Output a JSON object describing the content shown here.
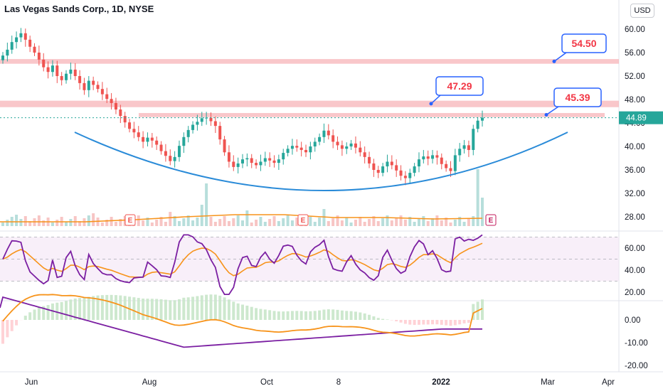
{
  "header": {
    "title": "Las Vegas Sands Corp., 1D, NYSE",
    "currency_button": "USD"
  },
  "colors": {
    "up": "#26a69a",
    "down": "#ef5350",
    "resistance_zone": "#f7b4b8",
    "arc": "#2a8bd8",
    "ma": "#f7931a",
    "rsi": "#7b1fa2",
    "callout_border": "#2962ff",
    "callout_text": "#f23645"
  },
  "price_axis": {
    "ticks": [
      "60.00",
      "56.00",
      "52.00",
      "48.00",
      "44.00",
      "40.00",
      "36.00",
      "32.00",
      "28.00"
    ],
    "last_price": "44.89"
  },
  "rsi_axis": {
    "ticks": [
      "60.00",
      "40.00",
      "20.00"
    ]
  },
  "macd_axis": {
    "ticks": [
      "0.00",
      "-10.00",
      "-20.00"
    ]
  },
  "time_axis": {
    "labels": [
      {
        "text": "Jun",
        "bold": false
      },
      {
        "text": "Aug",
        "bold": false
      },
      {
        "text": "Oct",
        "bold": false
      },
      {
        "text": "8",
        "bold": false
      },
      {
        "text": "2022",
        "bold": true
      },
      {
        "text": "Mar",
        "bold": false
      },
      {
        "text": "Apr",
        "bold": false
      }
    ]
  },
  "callouts": [
    {
      "label": "54.50",
      "price": 54.5
    },
    {
      "label": "47.29",
      "price": 47.29
    },
    {
      "label": "45.39",
      "price": 45.39
    }
  ],
  "earnings_markers": [
    "E",
    "E",
    "E"
  ],
  "chart_data": {
    "type": "candlestick",
    "symbol": "Las Vegas Sands Corp., 1D, NYSE",
    "series": [
      {
        "name": "price_close",
        "note": "approximate daily closes read from chart",
        "values": [
          55.5,
          56.5,
          57.8,
          58.6,
          59.3,
          58.2,
          57.0,
          56.0,
          54.8,
          53.5,
          52.7,
          53.8,
          52.0,
          51.3,
          52.4,
          53.1,
          52.0,
          50.8,
          49.6,
          51.2,
          50.5,
          49.8,
          48.9,
          48.1,
          47.4,
          46.3,
          45.2,
          44.1,
          43.0,
          42.4,
          41.6,
          40.8,
          41.5,
          41.0,
          40.3,
          39.2,
          38.4,
          37.5,
          38.2,
          40.1,
          41.6,
          42.8,
          43.7,
          44.2,
          44.8,
          44.9,
          44.3,
          43.5,
          41.2,
          39.0,
          37.4,
          36.5,
          37.1,
          37.8,
          38.0,
          37.2,
          36.8,
          37.4,
          38.0,
          37.6,
          37.2,
          37.8,
          38.9,
          39.6,
          40.1,
          39.8,
          39.4,
          39.0,
          40.0,
          40.8,
          41.6,
          42.7,
          41.9,
          40.8,
          40.2,
          39.6,
          40.0,
          40.5,
          39.8,
          39.0,
          38.2,
          37.1,
          36.0,
          35.5,
          36.6,
          37.4,
          36.8,
          35.9,
          35.0,
          34.6,
          35.5,
          36.6,
          37.8,
          38.3,
          37.9,
          38.5,
          38.1,
          37.0,
          36.3,
          35.8,
          38.5,
          39.6,
          40.2,
          39.4,
          43.0,
          44.4,
          44.9
        ]
      }
    ],
    "levels": [
      54.5,
      47.29,
      45.39
    ],
    "ylim": [
      26,
      62
    ]
  }
}
